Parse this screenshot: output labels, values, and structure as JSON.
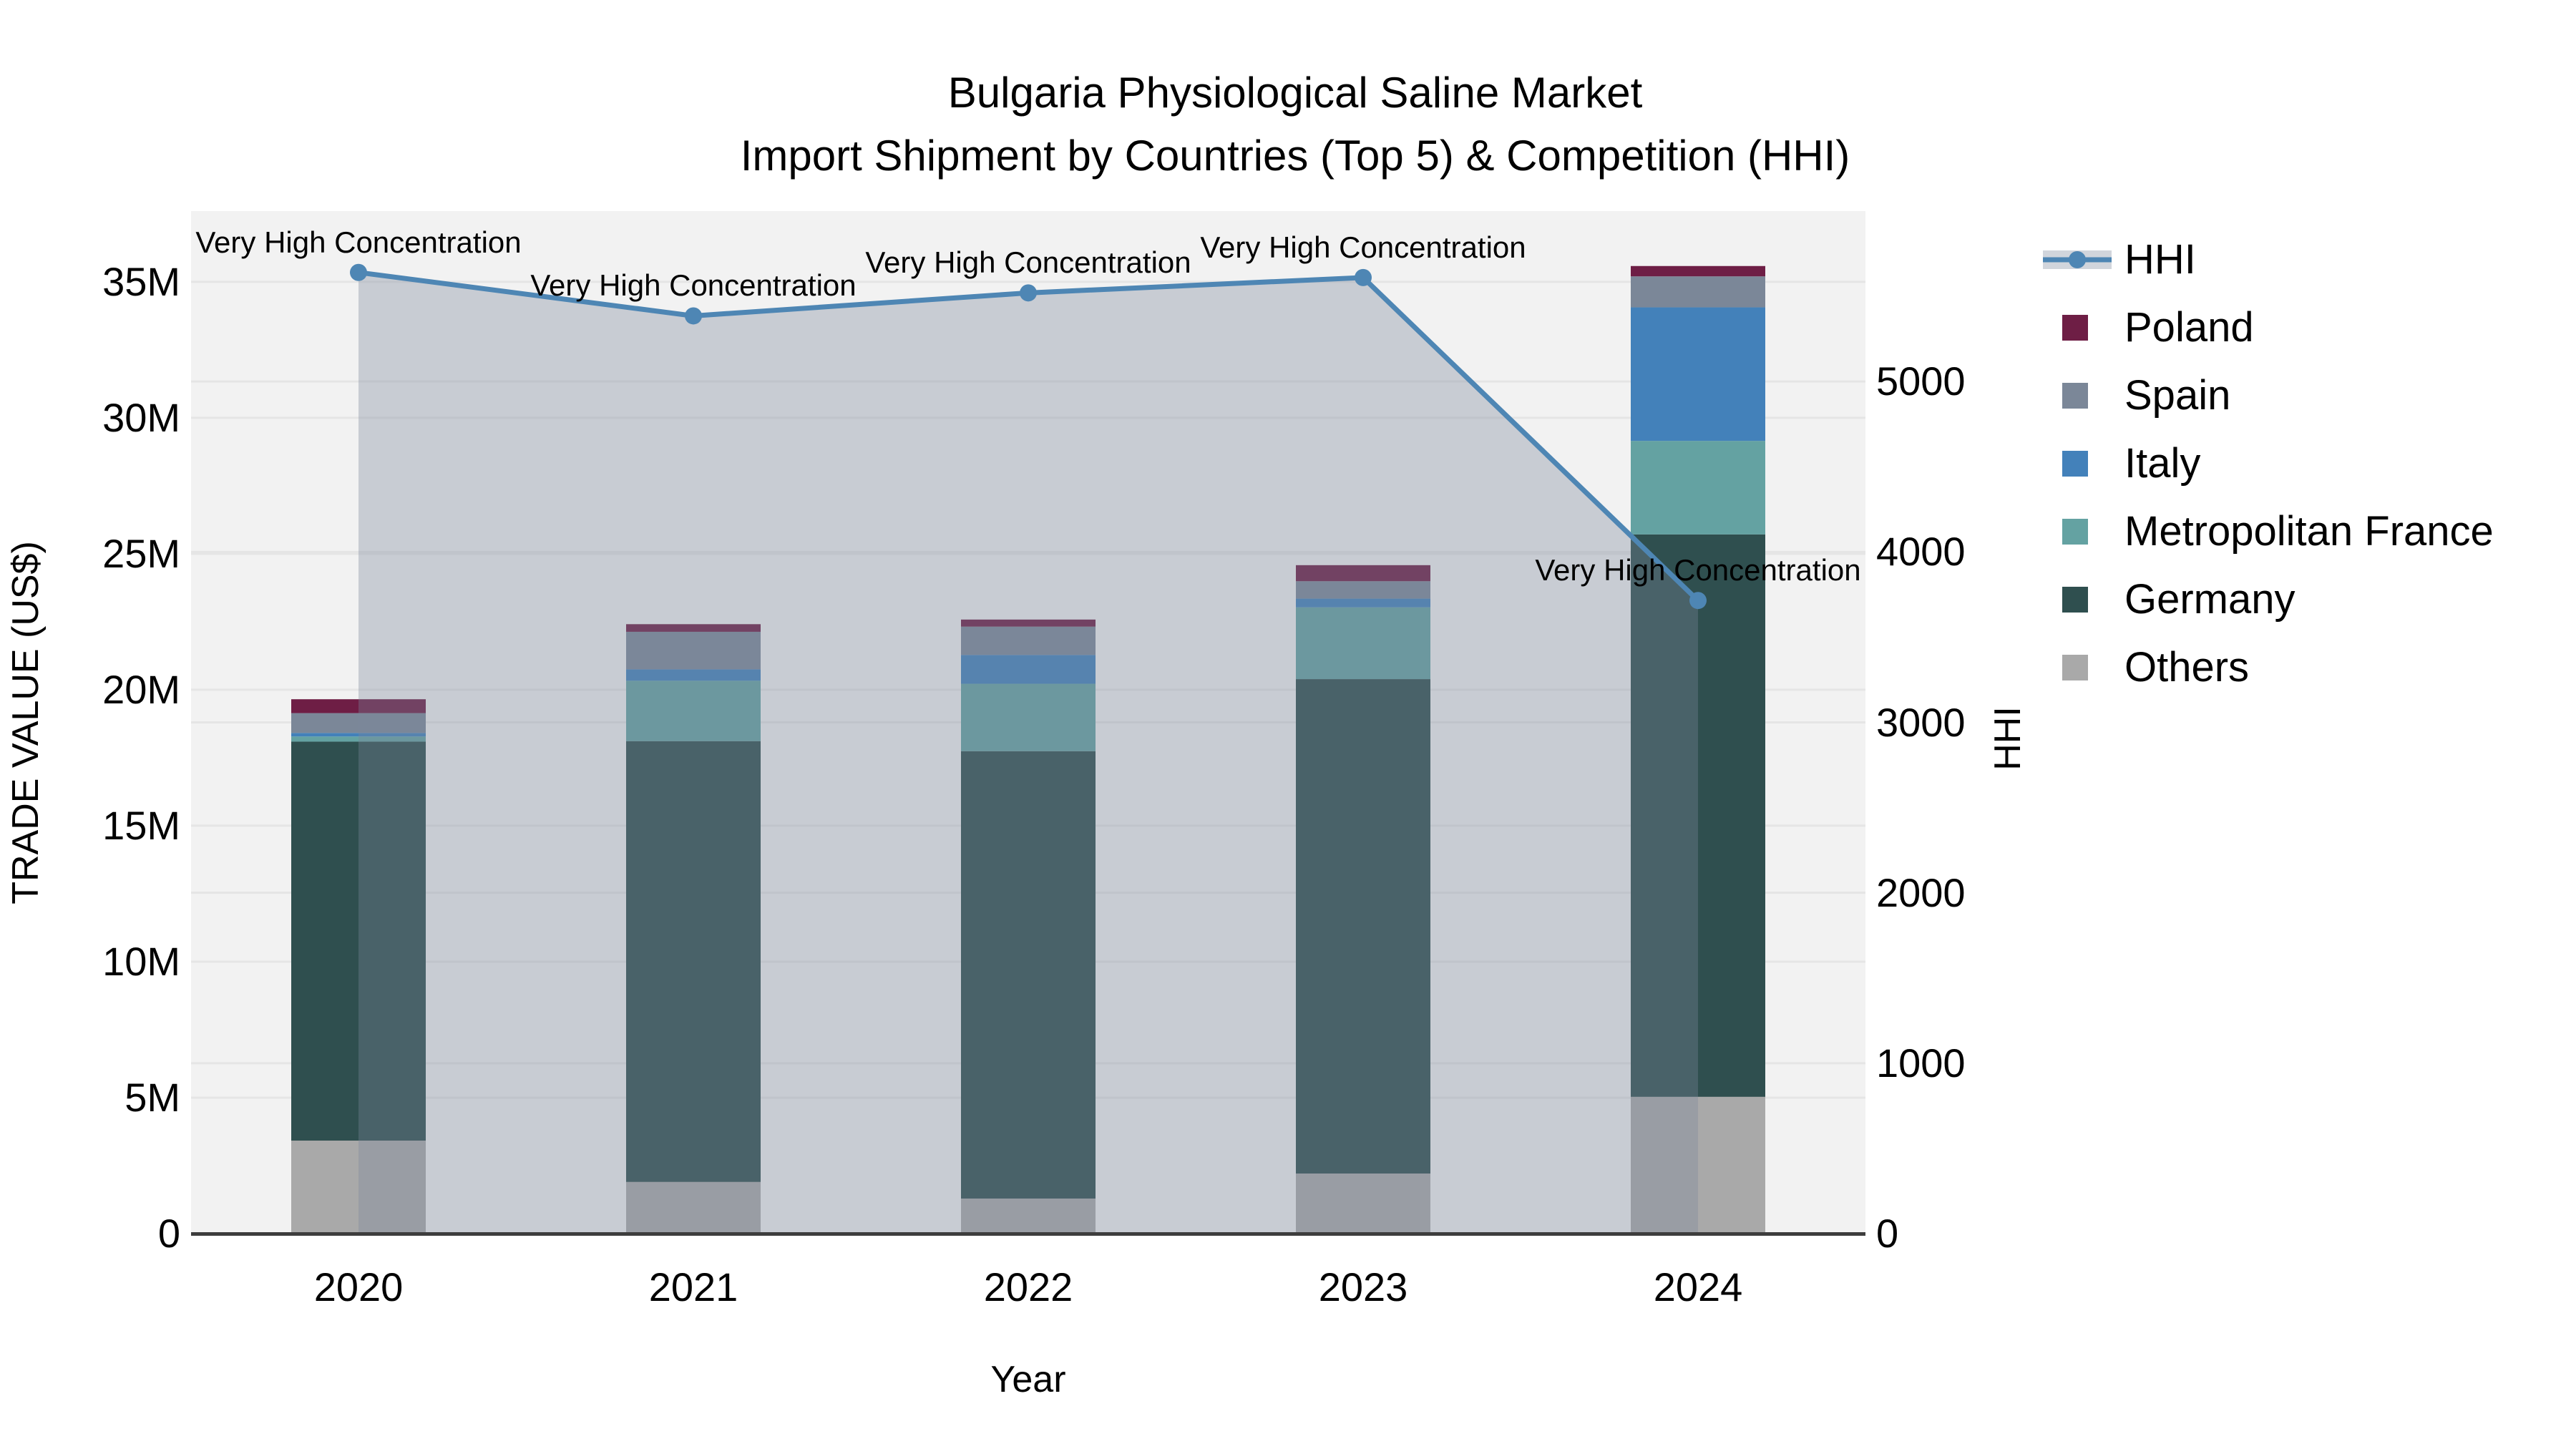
{
  "title": {
    "line1": "Bulgaria Physiological Saline Market",
    "line2": "Import Shipment by Countries (Top 5) & Competition (HHI)"
  },
  "colors": {
    "plot_bg": "#F2F2F2",
    "grid": "#E5E5E5",
    "axis_line": "#3D3D3D",
    "text": "#000000",
    "hhi_line": "#4E86B4",
    "area_fill": "rgba(124,136,154,0.35)",
    "legend_area_band": "#D1D5DC"
  },
  "axes": {
    "x": {
      "title": "Year",
      "categories": [
        "2020",
        "2021",
        "2022",
        "2023",
        "2024"
      ]
    },
    "y_left": {
      "title": "TRADE VALUE (US$)",
      "tick_values": [
        0,
        5,
        10,
        15,
        20,
        25,
        30,
        35
      ],
      "tick_labels": [
        "0",
        "5M",
        "10M",
        "15M",
        "20M",
        "25M",
        "30M",
        "35M"
      ],
      "range": [
        0,
        37.6
      ]
    },
    "y_right": {
      "title": "HHI",
      "tick_values": [
        0,
        1000,
        2000,
        3000,
        4000,
        5000
      ],
      "tick_labels": [
        "0",
        "1000",
        "2000",
        "3000",
        "4000",
        "5000"
      ],
      "range": [
        0,
        6000
      ]
    }
  },
  "legend": [
    {
      "name": "HHI",
      "swatch": "line-area",
      "color": "#4E86B4"
    },
    {
      "name": "Poland",
      "swatch": "square",
      "color": "#6E1E45"
    },
    {
      "name": "Spain",
      "swatch": "square",
      "color": "#7B8798"
    },
    {
      "name": "Italy",
      "swatch": "square",
      "color": "#4381BA"
    },
    {
      "name": "Metropolitan France",
      "swatch": "square",
      "color": "#64A2A2"
    },
    {
      "name": "Germany",
      "swatch": "square",
      "color": "#2F4F4F"
    },
    {
      "name": "Others",
      "swatch": "square",
      "color": "#A9A9A9"
    }
  ],
  "annotations": [
    {
      "year": "2020",
      "text": "Very High Concentration"
    },
    {
      "year": "2021",
      "text": "Very High Concentration"
    },
    {
      "year": "2022",
      "text": "Very High Concentration"
    },
    {
      "year": "2023",
      "text": "Very High Concentration"
    },
    {
      "year": "2024",
      "text": "Very High Concentration"
    }
  ],
  "chart_data": {
    "type": "stacked-bar + line-area combo",
    "categories": [
      "2020",
      "2021",
      "2022",
      "2023",
      "2024"
    ],
    "bar_unit": "million US$",
    "bar_series_bottom_to_top": [
      {
        "name": "Others",
        "color": "#A9A9A9",
        "values": [
          3.42,
          1.9,
          1.29,
          2.21,
          5.03
        ]
      },
      {
        "name": "Germany",
        "color": "#2F4F4F",
        "values": [
          14.67,
          16.21,
          16.45,
          18.18,
          20.68
        ]
      },
      {
        "name": "Metropolitan France",
        "color": "#64A2A2",
        "values": [
          0.19,
          2.22,
          2.48,
          2.64,
          3.44
        ]
      },
      {
        "name": "Italy",
        "color": "#4381BA",
        "values": [
          0.13,
          0.42,
          1.06,
          0.32,
          4.91
        ]
      },
      {
        "name": "Spain",
        "color": "#7B8798",
        "values": [
          0.73,
          1.38,
          1.04,
          0.64,
          1.14
        ]
      },
      {
        "name": "Poland",
        "color": "#6E1E45",
        "values": [
          0.51,
          0.28,
          0.26,
          0.59,
          0.38
        ]
      }
    ],
    "bar_totals": [
      19.65,
      22.41,
      22.58,
      24.58,
      35.58
    ],
    "line_series": {
      "name": "HHI",
      "color": "#4E86B4",
      "fill": "to-zero-area",
      "values": [
        5640,
        5385,
        5520,
        5610,
        3715
      ]
    },
    "xlabel": "Year",
    "ylabel_left": "TRADE VALUE (US$)",
    "ylabel_right": "HHI",
    "ylim_left": [
      0,
      37.6
    ],
    "ylim_right": [
      0,
      6000
    ],
    "grid": true,
    "legend_position": "top-right-outside"
  }
}
